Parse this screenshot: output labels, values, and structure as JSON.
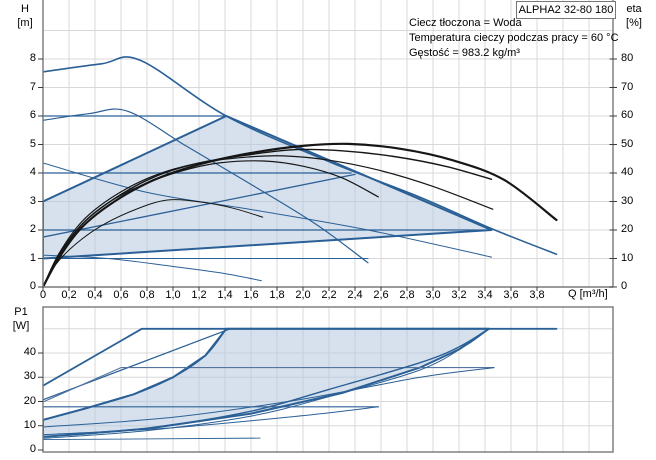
{
  "title_box": {
    "label": "ALPHA2 32-80 180"
  },
  "info_lines": [
    "Ciecz tłoczona = Woda",
    "Temperatura cieczy podczas pracy = 60 °C",
    "Gęstość = 983.2 kg/m³"
  ],
  "axes": {
    "h_title": "H",
    "h_unit": "[m]",
    "eta_title": "eta",
    "eta_unit": "[%]",
    "p1_title": "P1",
    "p1_unit": "[W]",
    "q_label": "Q [m³/h]"
  },
  "colors": {
    "curve_blue": "#2b6096",
    "curve_blue_light": "#53749e",
    "eta_black": "#161616",
    "fill": "#b4c8de",
    "fill_opacity": 0.55,
    "grid": "#d8d8d8",
    "frame": "#787878",
    "tick": "#3c3c3c",
    "text": "#000000"
  },
  "chart_data": [
    {
      "type": "line",
      "name": "head-and-efficiency-curves",
      "x": {
        "label": "Q [m³/h]",
        "tick_values": [
          0,
          0.2,
          0.4,
          0.6,
          0.8,
          1.0,
          1.2,
          1.4,
          1.6,
          1.8,
          2.0,
          2.2,
          2.4,
          2.6,
          2.8,
          3.0,
          3.2,
          3.4,
          3.6,
          3.8
        ],
        "tick_labels": [
          "0",
          "0,2",
          "0,4",
          "0,6",
          "0,8",
          "1,0",
          "1,2",
          "1,4",
          "1,6",
          "1,8",
          "2,0",
          "2,2",
          "2,4",
          "2,6",
          "2,8",
          "3,0",
          "3,2",
          "3,4",
          "3,6",
          "3,8"
        ],
        "range": [
          0,
          4.38
        ]
      },
      "y_left": {
        "label": "H [m]",
        "ticks": [
          0,
          1,
          2,
          3,
          4,
          5,
          6,
          7,
          8
        ],
        "range": [
          0,
          10.07
        ]
      },
      "y_right": {
        "label": "eta [%]",
        "ticks": [
          0,
          10,
          20,
          30,
          40,
          50,
          60,
          70,
          80
        ],
        "range": [
          0,
          100.7
        ]
      },
      "grid": true,
      "shaded_region": {
        "name": "autoadapt-operating-range",
        "points": [
          [
            0,
            1.0
          ],
          [
            0,
            3.0
          ],
          [
            1.41,
            6.0
          ],
          [
            3.45,
            2.0
          ]
        ]
      },
      "series": [
        {
          "name": "max-speed-curve",
          "axis": "left",
          "color": "blue",
          "width": 1.6,
          "smooth": true,
          "points": [
            [
              0,
              7.55
            ],
            [
              0.45,
              7.83
            ],
            [
              0.75,
              7.95
            ],
            [
              1.41,
              6.0
            ],
            [
              2.2,
              4.4
            ],
            [
              2.9,
              3.15
            ],
            [
              3.45,
              2.05
            ],
            [
              3.95,
              1.15
            ]
          ]
        },
        {
          "name": "speed-2-curve",
          "axis": "left",
          "color": "blue",
          "width": 1.2,
          "smooth": true,
          "points": [
            [
              0,
              5.85
            ],
            [
              0.35,
              6.08
            ],
            [
              0.65,
              6.17
            ],
            [
              1.1,
              4.95
            ],
            [
              1.6,
              3.6
            ],
            [
              2.1,
              2.2
            ],
            [
              2.5,
              0.85
            ]
          ]
        },
        {
          "name": "speed-1-curve",
          "axis": "left",
          "color": "blue",
          "width": 1,
          "smooth": true,
          "points": [
            [
              0,
              1.12
            ],
            [
              0.5,
              1.0
            ],
            [
              1.0,
              0.72
            ],
            [
              1.4,
              0.47
            ],
            [
              1.68,
              0.22
            ]
          ]
        },
        {
          "name": "mid-descending-curve",
          "axis": "left",
          "color": "blue",
          "width": 1,
          "smooth": true,
          "points": [
            [
              0,
              4.35
            ],
            [
              0.8,
              3.32
            ],
            [
              1.6,
              2.72
            ],
            [
              2.5,
              2.0
            ],
            [
              3.45,
              1.05
            ]
          ]
        },
        {
          "name": "const-pressure-6",
          "axis": "left",
          "color": "blue",
          "width": 1.3,
          "smooth": false,
          "points": [
            [
              0,
              6.0
            ],
            [
              1.41,
              6.0
            ]
          ]
        },
        {
          "name": "const-pressure-4",
          "axis": "left",
          "color": "blue",
          "width": 1.3,
          "smooth": false,
          "points": [
            [
              0,
              4.0
            ],
            [
              2.37,
              4.0
            ]
          ]
        },
        {
          "name": "const-pressure-2",
          "axis": "left",
          "color": "blue",
          "width": 1.3,
          "smooth": false,
          "points": [
            [
              0,
              2.0
            ],
            [
              3.45,
              2.0
            ]
          ]
        },
        {
          "name": "const-pressure-1",
          "axis": "left",
          "color": "blue",
          "width": 1,
          "smooth": false,
          "points": [
            [
              0,
              1.0
            ],
            [
              2.5,
              1.0
            ]
          ]
        },
        {
          "name": "prop-pressure-3",
          "axis": "left",
          "color": "blue",
          "width": 1.3,
          "smooth": false,
          "points": [
            [
              0,
              3.0
            ],
            [
              1.41,
              6.0
            ]
          ]
        },
        {
          "name": "prop-pressure-2",
          "axis": "left",
          "color": "blue",
          "width": 1.3,
          "smooth": false,
          "points": [
            [
              0,
              1.75
            ],
            [
              2.4,
              3.95
            ]
          ]
        },
        {
          "name": "prop-pressure-1",
          "axis": "left",
          "color": "blue",
          "width": 1.3,
          "smooth": false,
          "points": [
            [
              0,
              1.0
            ],
            [
              3.45,
              2.0
            ]
          ]
        },
        {
          "name": "efficiency-max-speed",
          "axis": "right",
          "color": "black",
          "width": 2.2,
          "smooth": true,
          "points": [
            [
              0,
              0
            ],
            [
              0.12,
              10
            ],
            [
              0.3,
              21
            ],
            [
              0.55,
              30
            ],
            [
              0.85,
              37.5
            ],
            [
              1.2,
              43
            ],
            [
              1.6,
              47
            ],
            [
              2.0,
              49.5
            ],
            [
              2.35,
              50.2
            ],
            [
              2.75,
              48.5
            ],
            [
              3.15,
              44.5
            ],
            [
              3.55,
              37.5
            ],
            [
              3.95,
              23.5
            ]
          ]
        },
        {
          "name": "efficiency-speed-2",
          "axis": "right",
          "color": "black",
          "width": 1.4,
          "smooth": true,
          "points": [
            [
              0,
              0
            ],
            [
              0.12,
              11
            ],
            [
              0.3,
              22
            ],
            [
              0.55,
              31
            ],
            [
              0.85,
              38.5
            ],
            [
              1.2,
              43.5
            ],
            [
              1.6,
              46.5
            ],
            [
              1.95,
              48.2
            ],
            [
              2.3,
              47.8
            ],
            [
              2.7,
              45.8
            ],
            [
              3.1,
              42.3
            ],
            [
              3.45,
              37.8
            ]
          ]
        },
        {
          "name": "efficiency-curve-3",
          "axis": "right",
          "color": "black",
          "width": 1.2,
          "smooth": true,
          "points": [
            [
              0,
              0
            ],
            [
              0.12,
              11.5
            ],
            [
              0.3,
              23
            ],
            [
              0.55,
              32
            ],
            [
              0.85,
              39
            ],
            [
              1.2,
              43.5
            ],
            [
              1.55,
              45.5
            ],
            [
              1.85,
              46
            ],
            [
              2.2,
              44.5
            ],
            [
              2.6,
              40.8
            ],
            [
              3.0,
              35.3
            ],
            [
              3.46,
              27.3
            ]
          ]
        },
        {
          "name": "efficiency-curve-4",
          "axis": "right",
          "color": "black",
          "width": 1.2,
          "smooth": true,
          "points": [
            [
              0,
              0
            ],
            [
              0.12,
              11
            ],
            [
              0.3,
              22
            ],
            [
              0.5,
              29.5
            ],
            [
              0.75,
              35.5
            ],
            [
              1.05,
              40.5
            ],
            [
              1.35,
              43.5
            ],
            [
              1.7,
              44.2
            ],
            [
              2.0,
              42.4
            ],
            [
              2.3,
              38.3
            ],
            [
              2.58,
              31.6
            ]
          ]
        },
        {
          "name": "efficiency-speed-1",
          "axis": "right",
          "color": "black",
          "width": 1,
          "smooth": true,
          "points": [
            [
              0,
              0
            ],
            [
              0.1,
              8
            ],
            [
              0.25,
              15
            ],
            [
              0.45,
              21.5
            ],
            [
              0.7,
              27
            ],
            [
              0.95,
              30.5
            ],
            [
              1.2,
              29.9
            ],
            [
              1.45,
              27.8
            ],
            [
              1.69,
              24.5
            ]
          ]
        }
      ]
    },
    {
      "type": "line",
      "name": "power-input-curves",
      "x": {
        "label": "Q [m³/h]",
        "range": [
          0,
          4.38
        ]
      },
      "y_left": {
        "label": "P1 [W]",
        "ticks": [
          0,
          10,
          20,
          30,
          40
        ],
        "range": [
          0,
          59
        ]
      },
      "grid": true,
      "shaded_region": {
        "name": "autoadapt-power-range",
        "points": [
          [
            0,
            12.4
          ],
          [
            0.35,
            17.5
          ],
          [
            0.7,
            23
          ],
          [
            1.0,
            30
          ],
          [
            1.25,
            39
          ],
          [
            1.41,
            50
          ],
          [
            3.43,
            50
          ],
          [
            3.2,
            41.5
          ],
          [
            2.9,
            34
          ],
          [
            2.3,
            23.5
          ],
          [
            1.6,
            15
          ],
          [
            0.8,
            8.8
          ],
          [
            0,
            5.4
          ]
        ]
      },
      "series": [
        {
          "name": "power-max-speed",
          "axis": "left",
          "color": "blue",
          "width": 1.8,
          "smooth": false,
          "points": [
            [
              0,
              26.5
            ],
            [
              0.76,
              50
            ],
            [
              3.95,
              50
            ]
          ]
        },
        {
          "name": "power-steep-2",
          "axis": "left",
          "color": "blue",
          "width": 1.2,
          "smooth": false,
          "points": [
            [
              0,
              20.7
            ],
            [
              1.44,
              50
            ]
          ]
        },
        {
          "name": "power-flat-34",
          "axis": "left",
          "color": "blue-light",
          "width": 1.1,
          "smooth": false,
          "points": [
            [
              0,
              19.8
            ],
            [
              0.6,
              34
            ],
            [
              3.47,
              34
            ]
          ]
        },
        {
          "name": "power-flat-18",
          "axis": "left",
          "color": "blue",
          "width": 1.1,
          "smooth": false,
          "points": [
            [
              0,
              17.8
            ],
            [
              2.58,
              17.8
            ]
          ]
        },
        {
          "name": "power-auto-max",
          "axis": "left",
          "color": "blue",
          "width": 1.4,
          "smooth": true,
          "points": [
            [
              0,
              12.4
            ],
            [
              0.35,
              17.5
            ],
            [
              0.7,
              23
            ],
            [
              1.0,
              30
            ],
            [
              1.25,
              39
            ],
            [
              1.41,
              50
            ]
          ]
        },
        {
          "name": "power-auto-min",
          "axis": "left",
          "color": "blue",
          "width": 1.4,
          "smooth": true,
          "points": [
            [
              0,
              5.4
            ],
            [
              0.8,
              9
            ],
            [
              1.6,
              16
            ],
            [
              2.2,
              25
            ],
            [
              2.9,
              36
            ],
            [
              3.2,
              42.5
            ],
            [
              3.43,
              50
            ]
          ]
        },
        {
          "name": "power-auto-min-2",
          "axis": "left",
          "color": "blue",
          "width": 1,
          "smooth": true,
          "points": [
            [
              0,
              4.8
            ],
            [
              0.8,
              8
            ],
            [
              1.6,
              14
            ],
            [
              2.2,
              22
            ],
            [
              2.9,
              33
            ],
            [
              3.25,
              43
            ],
            [
              3.43,
              50
            ]
          ]
        },
        {
          "name": "power-mid-curve",
          "axis": "left",
          "color": "blue",
          "width": 1,
          "smooth": true,
          "points": [
            [
              0,
              9.5
            ],
            [
              1.0,
              13.5
            ],
            [
              2.0,
              21
            ],
            [
              2.9,
              30
            ],
            [
              3.47,
              34
            ]
          ]
        },
        {
          "name": "power-low-curve",
          "axis": "left",
          "color": "blue",
          "width": 1,
          "smooth": true,
          "points": [
            [
              0,
              6.3
            ],
            [
              1.0,
              9.2
            ],
            [
              2.0,
              14.2
            ],
            [
              2.58,
              17.8
            ]
          ]
        },
        {
          "name": "power-speed-1",
          "axis": "left",
          "color": "blue",
          "width": 0.9,
          "smooth": false,
          "points": [
            [
              0,
              4.3
            ],
            [
              0.9,
              4.6
            ],
            [
              1.67,
              4.9
            ]
          ]
        }
      ]
    }
  ]
}
